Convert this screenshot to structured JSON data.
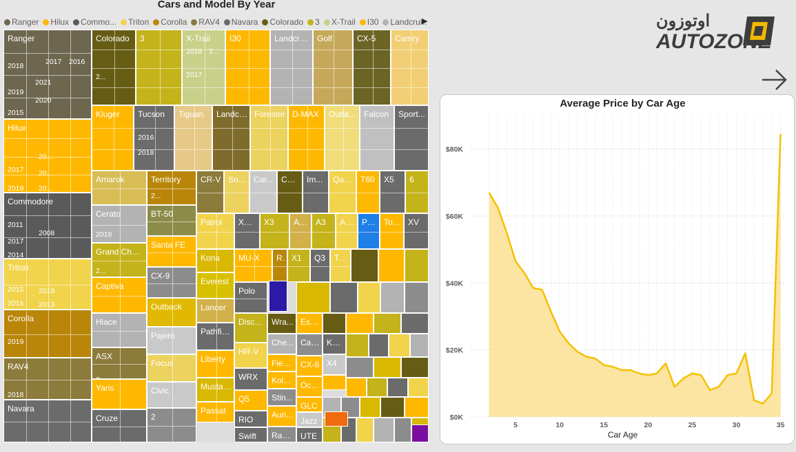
{
  "treemap": {
    "title": "Cars and Model By Year",
    "legend": [
      {
        "name": "Ranger",
        "color": "#6e6750"
      },
      {
        "name": "Hilux",
        "color": "#ffb800"
      },
      {
        "name": "Commo...",
        "color": "#5a5a5a"
      },
      {
        "name": "Triton",
        "color": "#f1d34c"
      },
      {
        "name": "Corolla",
        "color": "#b9860a"
      },
      {
        "name": "RAV4",
        "color": "#8c7b3a"
      },
      {
        "name": "Navara",
        "color": "#6b6b6b"
      },
      {
        "name": "Colorado",
        "color": "#665c14"
      },
      {
        "name": "3",
        "color": "#c4b31a"
      },
      {
        "name": "X-Trail",
        "color": "#c9d08a"
      },
      {
        "name": "I30",
        "color": "#ffb800"
      },
      {
        "name": "Landcrui...",
        "color": "#b3b3b3"
      }
    ],
    "tiles": [
      {
        "label": "Ranger",
        "color": "#6e6750",
        "years": [
          "2018",
          "2017",
          "2016",
          "2019",
          "2021",
          "2020",
          "2015"
        ]
      },
      {
        "label": "Hilux",
        "color": "#ffb800",
        "years": [
          "20...",
          "2017",
          "20...",
          "2019",
          "20..."
        ]
      },
      {
        "label": "Commodore",
        "color": "#5a5a5a",
        "years": [
          "2011",
          "2008",
          "2017",
          "2014"
        ]
      },
      {
        "label": "Triton",
        "color": "#f1d34c",
        "years": [
          "2015",
          "2019",
          "2016",
          "2013"
        ]
      },
      {
        "label": "Corolla",
        "color": "#b9860a",
        "years": [
          "2019"
        ]
      },
      {
        "label": "RAV4",
        "color": "#8c7b3a",
        "years": [
          "2018"
        ]
      },
      {
        "label": "Navara",
        "color": "#6b6b6b",
        "years": []
      },
      {
        "label": "Colorado",
        "color": "#665c14",
        "years": [
          "2..."
        ]
      },
      {
        "label": "3",
        "color": "#c4b31a",
        "years": []
      },
      {
        "label": "X-Trail",
        "color": "#c9d08a",
        "years": [
          "2018",
          "2...",
          "2017"
        ]
      },
      {
        "label": "I30",
        "color": "#ffb800",
        "years": []
      },
      {
        "label": "Landcru...",
        "color": "#b3b3b3",
        "years": []
      },
      {
        "label": "Golf",
        "color": "#c6a85a",
        "years": []
      },
      {
        "label": "CX-5",
        "color": "#6b6424",
        "years": []
      },
      {
        "label": "Camry",
        "color": "#f2cf74",
        "years": []
      },
      {
        "label": "Kluger",
        "color": "#ffb800",
        "years": []
      },
      {
        "label": "Tucson",
        "color": "#6b6b6b",
        "years": [
          "2016",
          "2018"
        ]
      },
      {
        "label": "Tiguan",
        "color": "#e6c987",
        "years": []
      },
      {
        "label": "Landcr...",
        "color": "#7f6b2c",
        "years": []
      },
      {
        "label": "Forester",
        "color": "#ecd25e",
        "years": []
      },
      {
        "label": "D-MAX",
        "color": "#ffb800",
        "years": []
      },
      {
        "label": "Outla...",
        "color": "#f0dd7a",
        "years": []
      },
      {
        "label": "Falcon",
        "color": "#c0c0c0",
        "years": []
      },
      {
        "label": "Sport...",
        "color": "#6b6b6b",
        "years": []
      },
      {
        "label": "Amarok",
        "color": "#d8bd55",
        "years": []
      },
      {
        "label": "Territory",
        "color": "#b9860a",
        "years": [
          "2..."
        ]
      },
      {
        "label": "CR-V",
        "color": "#8c7b3a",
        "years": []
      },
      {
        "label": "Sor...",
        "color": "#ecd25e",
        "years": []
      },
      {
        "label": "Car...",
        "color": "#c9c9c9",
        "years": []
      },
      {
        "label": "CX-3",
        "color": "#665c14",
        "years": []
      },
      {
        "label": "Im...",
        "color": "#6b6b6b",
        "years": []
      },
      {
        "label": "Qa...",
        "color": "#f1d34c",
        "years": []
      },
      {
        "label": "T60",
        "color": "#ffb800",
        "years": []
      },
      {
        "label": "X5",
        "color": "#6b6b6b",
        "years": []
      },
      {
        "label": "6",
        "color": "#c4b31a",
        "years": []
      },
      {
        "label": "BT-50",
        "color": "#8c8c4a",
        "years": []
      },
      {
        "label": "Patrol",
        "color": "#f1d34c",
        "years": []
      },
      {
        "label": "XC60",
        "color": "#6b6b6b",
        "years": []
      },
      {
        "label": "X3",
        "color": "#c4b31a",
        "years": []
      },
      {
        "label": "Ast...",
        "color": "#d2b04a",
        "years": []
      },
      {
        "label": "A3",
        "color": "#c4b31a",
        "years": []
      },
      {
        "label": "Ac...",
        "color": "#f1d34c",
        "years": []
      },
      {
        "label": "Paj...",
        "color": "#1f7fe6",
        "years": []
      },
      {
        "label": "To...",
        "color": "#ffb800",
        "years": []
      },
      {
        "label": "XV",
        "color": "#6b6b6b",
        "years": []
      },
      {
        "label": "Cerato",
        "color": "#b3b3b3",
        "years": [
          "2018"
        ]
      },
      {
        "label": "Santa FE",
        "color": "#ffb800",
        "years": []
      },
      {
        "label": "Kona",
        "color": "#d8b800",
        "years": []
      },
      {
        "label": "MU-X",
        "color": "#ffb800",
        "years": []
      },
      {
        "label": "R...",
        "color": "#b9860a",
        "years": []
      },
      {
        "label": "X1",
        "color": "#c4b31a",
        "years": []
      },
      {
        "label": "Q3",
        "color": "#6b6b6b",
        "years": []
      },
      {
        "label": "Tr...",
        "color": "#f1d34c",
        "years": []
      },
      {
        "label": "Grand Cher...",
        "color": "#c4b31a",
        "years": [
          "2..."
        ]
      },
      {
        "label": "CX-9",
        "color": "#8c8c8c",
        "years": []
      },
      {
        "label": "Everest",
        "color": "#d8c000",
        "years": []
      },
      {
        "label": "Polo",
        "color": "#6b6b6b",
        "years": []
      },
      {
        "label": "Captiva",
        "color": "#ffb800",
        "years": []
      },
      {
        "label": "Outback",
        "color": "#e0b900",
        "years": []
      },
      {
        "label": "Lancer",
        "color": "#d2b04a",
        "years": []
      },
      {
        "label": "Disco...",
        "color": "#c4b31a",
        "years": []
      },
      {
        "label": "Hiace",
        "color": "#b3b3b3",
        "years": []
      },
      {
        "label": "Pathfin...",
        "color": "#6b6b6b",
        "years": []
      },
      {
        "label": "HR-V",
        "color": "#f1d34c",
        "years": []
      },
      {
        "label": "Wra...",
        "color": "#665c14",
        "years": []
      },
      {
        "label": "Esca...",
        "color": "#ffb800",
        "years": []
      },
      {
        "label": "Pajero",
        "color": "#c9c9c9",
        "years": []
      },
      {
        "label": "Che...",
        "color": "#b3b3b3",
        "years": []
      },
      {
        "label": "Calais",
        "color": "#8c8c8c",
        "years": []
      },
      {
        "label": "Ko...",
        "color": "#6b6b6b",
        "years": []
      },
      {
        "label": "ASX",
        "color": "#8c7b3a",
        "years": [
          "2..."
        ]
      },
      {
        "label": "Liberty",
        "color": "#ffb800",
        "years": []
      },
      {
        "label": "WRX",
        "color": "#6b6b6b",
        "years": []
      },
      {
        "label": "CX-8",
        "color": "#ffb800",
        "years": []
      },
      {
        "label": "X4",
        "color": "#c9c9c9",
        "years": []
      },
      {
        "label": "Focus",
        "color": "#ecd25e",
        "years": []
      },
      {
        "label": "Fiesta",
        "color": "#ffb800",
        "years": []
      },
      {
        "label": "Q5",
        "color": "#ffb800",
        "years": []
      },
      {
        "label": "Oct...",
        "color": "#ffb800",
        "years": []
      },
      {
        "label": "Mustang",
        "color": "#d8b800",
        "years": []
      },
      {
        "label": "Kol...",
        "color": "#ffb800",
        "years": []
      },
      {
        "label": "Yaris",
        "color": "#ffb800",
        "years": []
      },
      {
        "label": "RIO",
        "color": "#6b6b6b",
        "years": []
      },
      {
        "label": "GLC",
        "color": "#ffb800",
        "years": []
      },
      {
        "label": "Civic",
        "color": "#c9c9c9",
        "years": []
      },
      {
        "label": "Stin...",
        "color": "#8c8c8c",
        "years": []
      },
      {
        "label": "Jazz",
        "color": "#c9c9c9",
        "years": []
      },
      {
        "label": "Passat",
        "color": "#ffb800",
        "years": []
      },
      {
        "label": "C-HR",
        "color": "#8c8c8c",
        "years": []
      },
      {
        "label": "Auri...",
        "color": "#ffb800",
        "years": []
      },
      {
        "label": "Mo...",
        "color": "#f1d34c",
        "years": []
      },
      {
        "label": "Cruze",
        "color": "#6b6b6b",
        "years": []
      },
      {
        "label": "2",
        "color": "#8c8c8c",
        "years": []
      },
      {
        "label": "Swift",
        "color": "#6b6b6b",
        "years": []
      },
      {
        "label": "Rang...",
        "color": "#8c8c8c",
        "years": []
      },
      {
        "label": "UTE",
        "color": "#6b6b6b",
        "years": []
      },
      {
        "label": "Trail...",
        "color": "#ffb800",
        "years": []
      }
    ]
  },
  "logo": {
    "arabic": "اوتوزون",
    "latin": "AUTOZONE"
  },
  "chart_data": {
    "type": "area",
    "title": "Average Price by Car Age",
    "xlabel": "Car Age",
    "ylabel": "",
    "x": [
      2,
      3,
      4,
      5,
      6,
      7,
      8,
      9,
      10,
      11,
      12,
      13,
      14,
      15,
      16,
      17,
      18,
      19,
      20,
      21,
      22,
      23,
      24,
      25,
      26,
      27,
      28,
      29,
      30,
      31,
      32,
      33,
      34,
      35
    ],
    "values": [
      67000,
      62500,
      55000,
      46500,
      43000,
      38500,
      38000,
      31500,
      25500,
      22000,
      19500,
      18000,
      17500,
      15500,
      15000,
      14000,
      14000,
      13000,
      12500,
      13000,
      16000,
      9000,
      11500,
      13000,
      12500,
      8000,
      9000,
      12500,
      13000,
      19000,
      5000,
      4000,
      7000,
      84500
    ],
    "yticks": [
      "$0K",
      "$20K",
      "$40K",
      "$60K",
      "$80K"
    ],
    "ytick_values": [
      0,
      20000,
      40000,
      60000,
      80000
    ],
    "xticks": [
      5,
      10,
      15,
      20,
      25,
      30,
      35
    ],
    "ylim": [
      0,
      90000
    ],
    "xlim": [
      0,
      35.5
    ],
    "line_color": "#f5c000",
    "fill_color": "#fbe092",
    "grid": "dotted horizontal and vertical"
  }
}
